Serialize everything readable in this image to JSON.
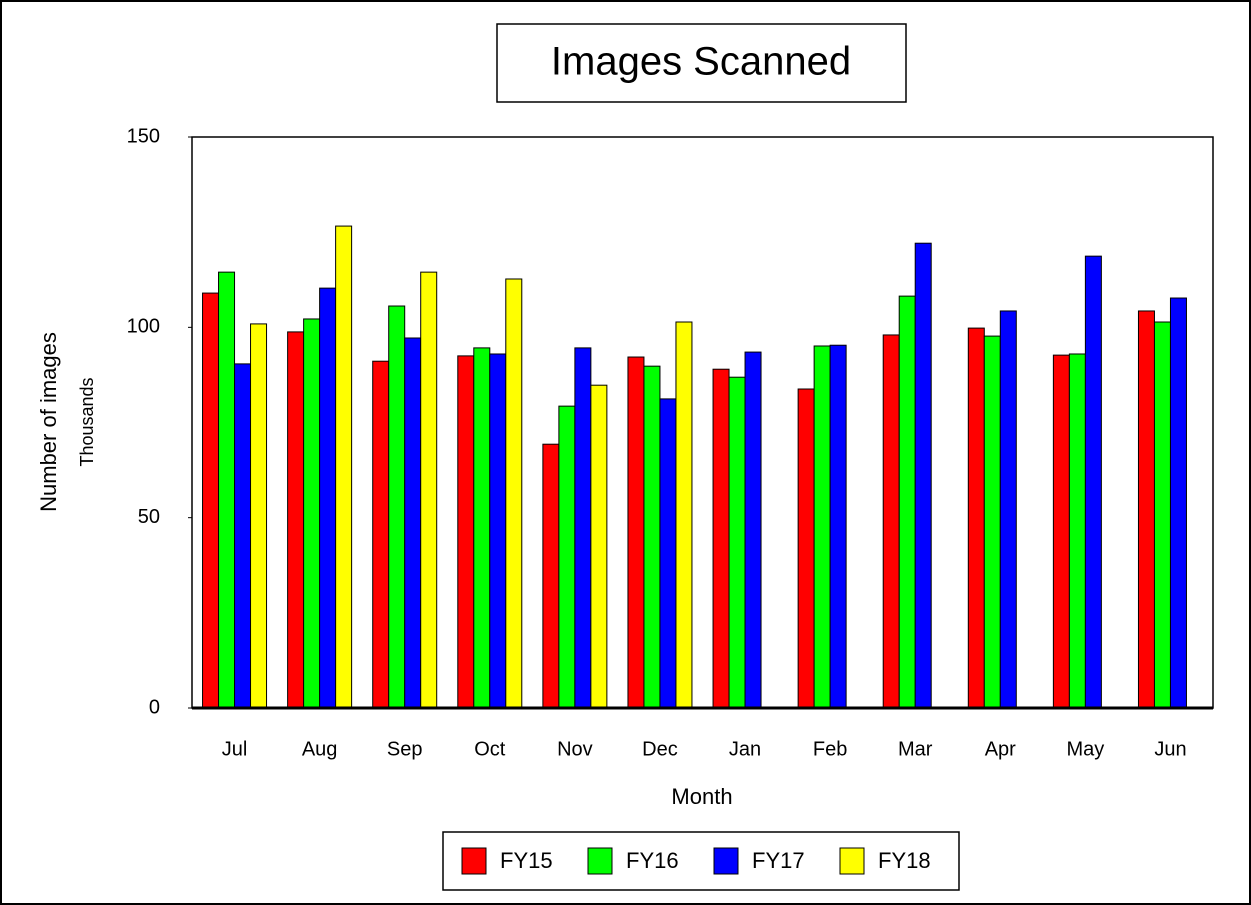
{
  "chart_data": {
    "type": "bar",
    "title": "Images Scanned",
    "x_label": "Month",
    "y_label": "Number of images",
    "y_sublabel": "Thousands",
    "categories": [
      "Jul",
      "Aug",
      "Sep",
      "Oct",
      "Nov",
      "Dec",
      "Jan",
      "Feb",
      "Mar",
      "Apr",
      "May",
      "Jun"
    ],
    "series": [
      {
        "name": "FY15",
        "color": "#ff0000",
        "values": [
          109,
          98.8,
          91.1,
          92.5,
          69.3,
          92.2,
          89,
          83.8,
          98,
          99.8,
          92.7,
          104.3
        ]
      },
      {
        "name": "FY16",
        "color": "#00ff00",
        "values": [
          114.5,
          102.2,
          105.6,
          94.6,
          79.3,
          89.8,
          86.9,
          95.1,
          108.2,
          97.7,
          93,
          101.4
        ]
      },
      {
        "name": "FY17",
        "color": "#0000ff",
        "values": [
          90.4,
          110.3,
          97.2,
          93,
          94.6,
          81.2,
          93.5,
          95.3,
          122.1,
          104.3,
          118.7,
          107.7
        ]
      },
      {
        "name": "FY18",
        "color": "#ffff00",
        "values": [
          100.9,
          126.6,
          114.5,
          112.7,
          84.8,
          101.4,
          null,
          null,
          null,
          null,
          null,
          null
        ]
      }
    ],
    "ylim": [
      0,
      150
    ],
    "yticks": [
      0,
      50,
      100,
      150
    ],
    "grid": false,
    "legend": "bottom"
  }
}
